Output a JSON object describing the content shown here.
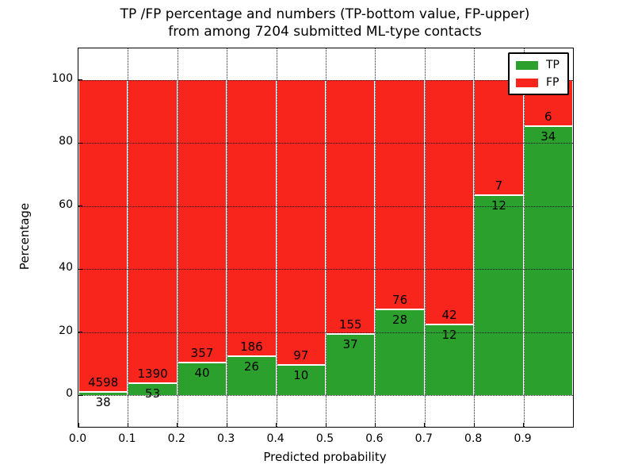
{
  "title": {
    "line1": "TP /FP percentage and numbers (TP-bottom value, FP-upper)",
    "line2": "from among 7204 submitted ML-type contacts"
  },
  "axes": {
    "xlabel": "Predicted probability",
    "ylabel": "Percentage",
    "x_tick_labels": [
      "0.0",
      "0.1",
      "0.2",
      "0.3",
      "0.4",
      "0.5",
      "0.6",
      "0.7",
      "0.8",
      "0.9"
    ],
    "y_tick_labels": [
      "0",
      "20",
      "40",
      "60",
      "80",
      "100"
    ],
    "y_tick_values": [
      0,
      20,
      40,
      60,
      80,
      100
    ],
    "xlim": [
      0.0,
      1.0
    ],
    "ylim": [
      -10,
      110
    ],
    "grid_style": "dotted"
  },
  "legend": {
    "position": "upper right",
    "entries": [
      {
        "label": "TP",
        "color": "#2ca02c"
      },
      {
        "label": "FP",
        "color": "#f8251c"
      }
    ]
  },
  "chart_data": {
    "type": "bar",
    "stacked": true,
    "normalization": "each bin stacked to 100 percent",
    "total_contacts": 7204,
    "title": "TP /FP percentage and numbers (TP-bottom value, FP-upper) from among 7204 submitted ML-type contacts",
    "xlabel": "Predicted probability",
    "ylabel": "Percentage",
    "bin_edges": [
      0.0,
      0.1,
      0.2,
      0.3,
      0.4,
      0.5,
      0.6,
      0.7,
      0.8,
      0.9,
      1.0
    ],
    "series": [
      {
        "name": "TP",
        "color": "#2ca02c",
        "counts": [
          38,
          53,
          40,
          26,
          10,
          37,
          28,
          12,
          12,
          34
        ],
        "percent": [
          0.82,
          3.67,
          10.08,
          12.26,
          9.35,
          19.27,
          26.92,
          22.22,
          63.16,
          85.0
        ]
      },
      {
        "name": "FP",
        "color": "#f8251c",
        "counts": [
          4598,
          1390,
          357,
          186,
          97,
          155,
          76,
          42,
          7,
          6
        ],
        "percent": [
          99.18,
          96.33,
          89.92,
          87.74,
          90.65,
          80.73,
          73.08,
          77.78,
          36.84,
          15.0
        ]
      }
    ],
    "label_convention": "TP count below segment boundary, FP count above segment boundary"
  }
}
